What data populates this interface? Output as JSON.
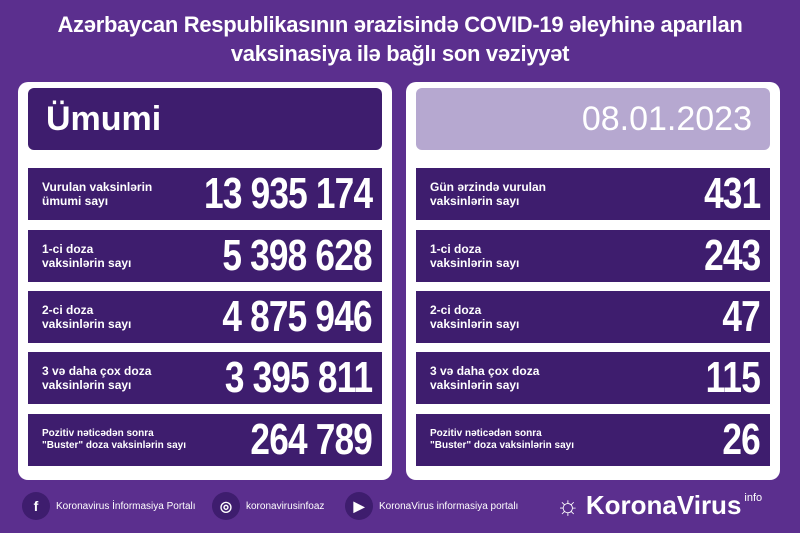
{
  "title": "Azərbaycan Respublikasının ərazisində COVID-19 əleyhinə aparılan\nvaksinasiya ilə bağlı son vəziyyət",
  "left": {
    "header": "Ümumi",
    "rows": [
      {
        "label": "Vurulan vaksinlərin\nümumi sayı",
        "value": "13 935 174"
      },
      {
        "label": "1-ci doza\nvaksinlərin sayı",
        "value": "5 398 628"
      },
      {
        "label": "2-ci doza\nvaksinlərin sayı",
        "value": "4 875 946"
      },
      {
        "label": "3 və daha çox doza\nvaksinlərin sayı",
        "value": "3 395 811"
      },
      {
        "label": "Pozitiv nəticədən sonra\n\"Buster\" doza vaksinlərin sayı",
        "value": "264 789"
      }
    ]
  },
  "right": {
    "header": "08.01.2023",
    "rows": [
      {
        "label": "Gün ərzində vurulan\nvaksinlərin sayı",
        "value": "431"
      },
      {
        "label": "1-ci doza\nvaksinlərin sayı",
        "value": "243"
      },
      {
        "label": "2-ci doza\nvaksinlərin sayı",
        "value": "47"
      },
      {
        "label": "3 və daha çox doza\nvaksinlərin sayı",
        "value": "115"
      },
      {
        "label": "Pozitiv nəticədən sonra\n\"Buster\" doza vaksinlərin sayı",
        "value": "26"
      }
    ]
  },
  "footer": {
    "facebook": "Koronavirus İnformasiya Portalı",
    "instagram": "koronavirusinfoaz",
    "youtube": "KoronaVirus informasiya portalı",
    "logo_name": "KoronaVirus",
    "logo_sup": "info"
  },
  "colors": {
    "background": "#5b2f8e",
    "row": "#3e1d6e",
    "date_header": "#b6a8d0"
  }
}
